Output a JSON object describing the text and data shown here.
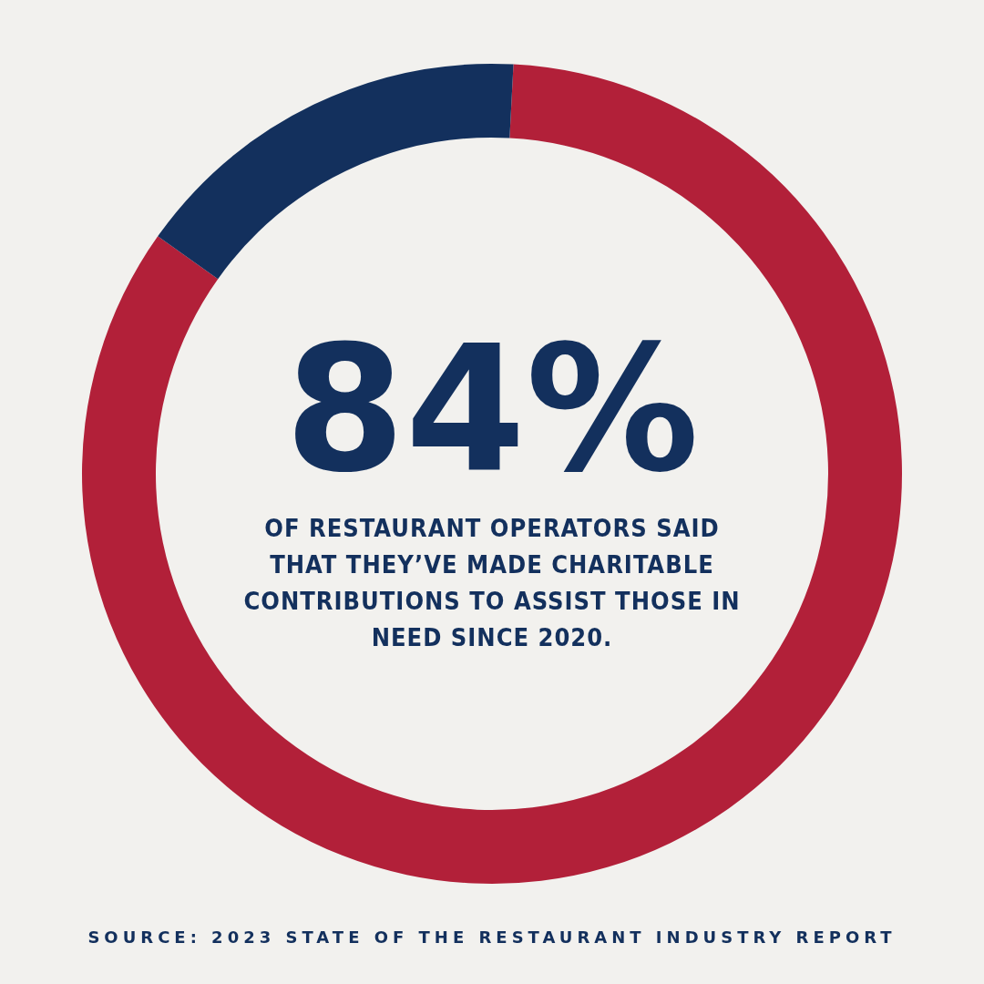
{
  "chart_data": {
    "type": "donut",
    "categories": [
      null,
      null
    ],
    "values": [
      84,
      16
    ],
    "colors": [
      "#b22039",
      "#13305d"
    ],
    "value_labels": [
      "84%",
      null
    ],
    "annotations": [
      "OF RESTAURANT OPERATORS SAID THAT THEY’VE MADE CHARITABLE CONTRIBUTIONS TO ASSIST THOSE IN NEED SINCE 2020.",
      "SOURCE: 2023 STATE OF THE RESTAURANT INDUSTRY REPORT"
    ]
  }
}
